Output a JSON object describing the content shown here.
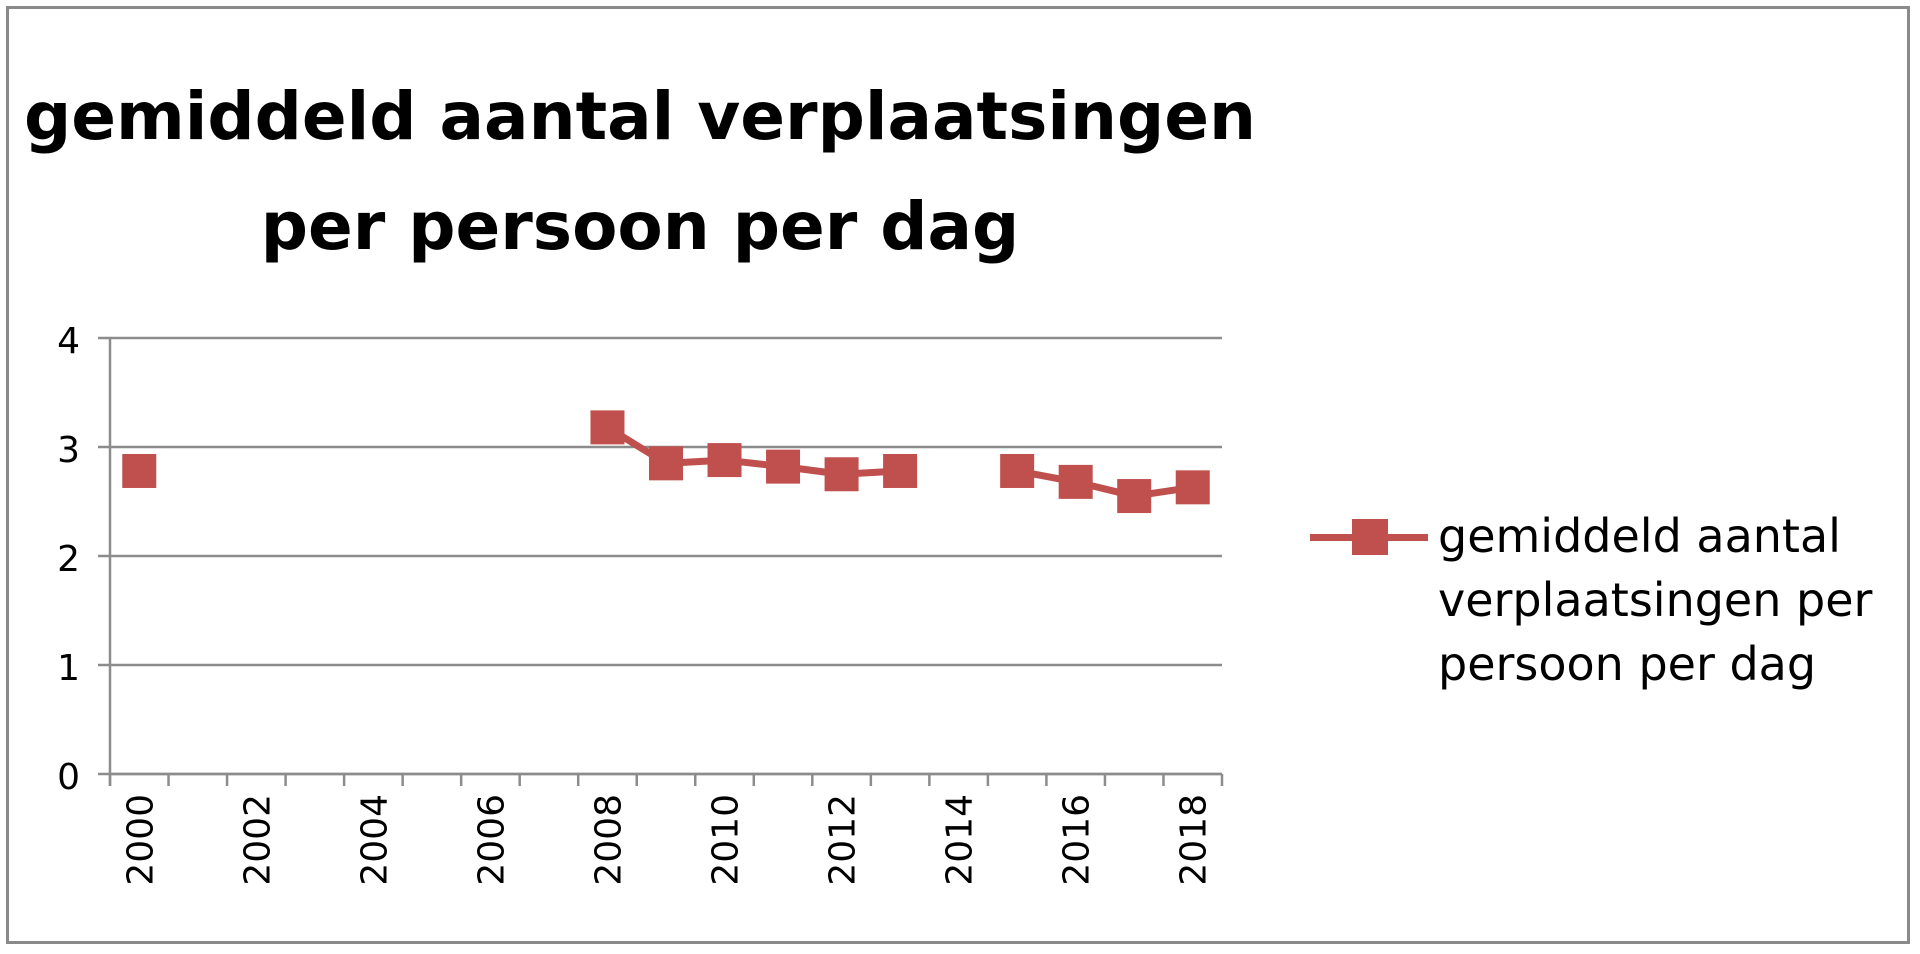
{
  "chart_data": {
    "type": "line",
    "title": "gemiddeld aantal verplaatsingen per persoon per dag",
    "xlabel": "",
    "ylabel": "",
    "categories": [
      "2000",
      "2001",
      "2002",
      "2003",
      "2004",
      "2005",
      "2006",
      "2007",
      "2008",
      "2009",
      "2010",
      "2011",
      "2012",
      "2013",
      "2014",
      "2015",
      "2016",
      "2017",
      "2018"
    ],
    "x_tick_labels": [
      "2000",
      "2002",
      "2004",
      "2006",
      "2008",
      "2010",
      "2012",
      "2014",
      "2016",
      "2018"
    ],
    "y_ticks": [
      0,
      1,
      2,
      3,
      4
    ],
    "ylim": [
      0,
      4
    ],
    "grid": "horizontal",
    "legend_position": "right",
    "series": [
      {
        "name": "gemiddeld aantal verplaatsingen per persoon per dag",
        "color": "#c0504d",
        "marker": "square",
        "values": [
          2.78,
          null,
          null,
          null,
          null,
          null,
          null,
          null,
          3.18,
          2.85,
          2.88,
          2.82,
          2.75,
          2.78,
          null,
          2.78,
          2.68,
          2.55,
          2.63
        ]
      }
    ]
  }
}
